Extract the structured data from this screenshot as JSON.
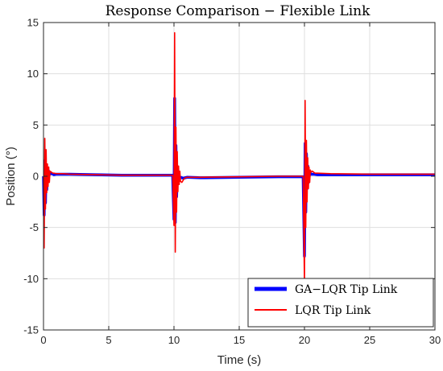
{
  "chart_data": {
    "type": "line",
    "title": "Response Comparison − Flexible Link",
    "xlabel": "Time (s)",
    "ylabel": "Position (°)",
    "xlim": [
      0,
      30
    ],
    "ylim": [
      -15,
      15
    ],
    "xticks": [
      0,
      5,
      10,
      15,
      20,
      25,
      30
    ],
    "yticks": [
      -15,
      -10,
      -5,
      0,
      5,
      10,
      15
    ],
    "grid": true,
    "legend_position": "bottom-right",
    "series": [
      {
        "name": "GA−LQR Tip Link",
        "color": "#0000ff",
        "x": [
          0,
          0.05,
          0.1,
          0.15,
          0.2,
          0.25,
          0.3,
          0.35,
          0.4,
          0.5,
          0.6,
          0.8,
          1.0,
          2,
          4,
          6,
          8,
          9.9,
          10.0,
          10.05,
          10.1,
          10.15,
          10.2,
          10.25,
          10.3,
          10.35,
          10.4,
          10.5,
          10.7,
          11,
          12,
          15,
          18,
          19.9,
          20.0,
          20.05,
          20.1,
          20.15,
          20.2,
          20.25,
          20.3,
          20.4,
          20.5,
          20.7,
          21,
          22,
          25,
          28,
          30
        ],
        "y": [
          0,
          -3.8,
          1.5,
          -2.6,
          1.1,
          -1.3,
          0.8,
          -0.5,
          0.5,
          0.2,
          0.3,
          0.15,
          0.2,
          0.2,
          0.15,
          0.1,
          0.1,
          0.1,
          -4.2,
          7.6,
          -4.5,
          3.0,
          -2.0,
          0.5,
          -0.4,
          0.2,
          -0.2,
          -0.1,
          -0.2,
          -0.1,
          -0.15,
          -0.1,
          -0.05,
          -0.05,
          -7.8,
          3.2,
          -3.5,
          2.2,
          -1.2,
          1.0,
          -0.6,
          0.4,
          0.2,
          0.2,
          0.15,
          0.15,
          0.15,
          0.15,
          0.15
        ]
      },
      {
        "name": "LQR Tip Link",
        "color": "#ff0000",
        "x": [
          0,
          0.05,
          0.1,
          0.15,
          0.2,
          0.25,
          0.3,
          0.35,
          0.4,
          0.45,
          0.5,
          0.6,
          0.7,
          0.8,
          1.0,
          1.5,
          2,
          4,
          6,
          8,
          9.9,
          10.0,
          10.05,
          10.1,
          10.15,
          10.2,
          10.25,
          10.3,
          10.35,
          10.4,
          10.45,
          10.5,
          10.6,
          10.7,
          10.8,
          11,
          12,
          15,
          18,
          19.9,
          20.0,
          20.05,
          20.1,
          20.15,
          20.2,
          20.25,
          20.3,
          20.35,
          20.4,
          20.45,
          20.5,
          20.6,
          20.7,
          20.8,
          21,
          22,
          25,
          28,
          30
        ],
        "y": [
          0,
          -7.0,
          3.7,
          -3.2,
          2.6,
          -1.6,
          1.2,
          -1.0,
          0.9,
          -0.6,
          0.5,
          0.4,
          0.3,
          0.3,
          0.25,
          0.25,
          0.2,
          0.15,
          0.1,
          0.1,
          0.1,
          -4.8,
          14.0,
          -7.4,
          4.8,
          -3.5,
          2.4,
          -1.5,
          1.0,
          -0.8,
          0.5,
          -0.5,
          -0.6,
          -0.4,
          -0.2,
          -0.1,
          -0.1,
          -0.05,
          0,
          0,
          -10.5,
          7.4,
          -5.0,
          3.5,
          -2.5,
          1.8,
          -1.2,
          0.9,
          -0.6,
          0.6,
          0.4,
          0.5,
          0.4,
          0.3,
          0.3,
          0.25,
          0.2,
          0.2,
          0.2
        ]
      }
    ]
  }
}
